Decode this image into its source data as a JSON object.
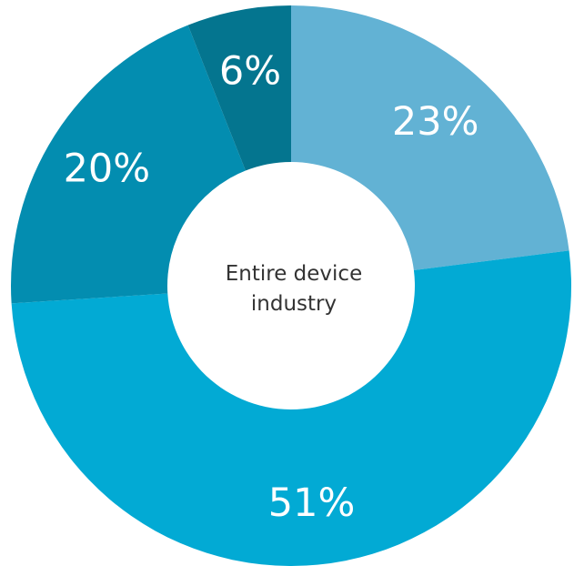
{
  "chart_data": {
    "type": "pie",
    "donut": true,
    "center_label_lines": [
      "Entire device",
      "industry"
    ],
    "slices": [
      {
        "value": 23,
        "label": "23%",
        "color": "#62b2d4"
      },
      {
        "value": 51,
        "label": "51%",
        "color": "#02aad4"
      },
      {
        "value": 20,
        "label": "20%",
        "color": "#038db0"
      },
      {
        "value": 6,
        "label": "6%",
        "color": "#04758f"
      }
    ],
    "start_angle_deg": 0,
    "direction": "clockwise",
    "legend": "none"
  }
}
